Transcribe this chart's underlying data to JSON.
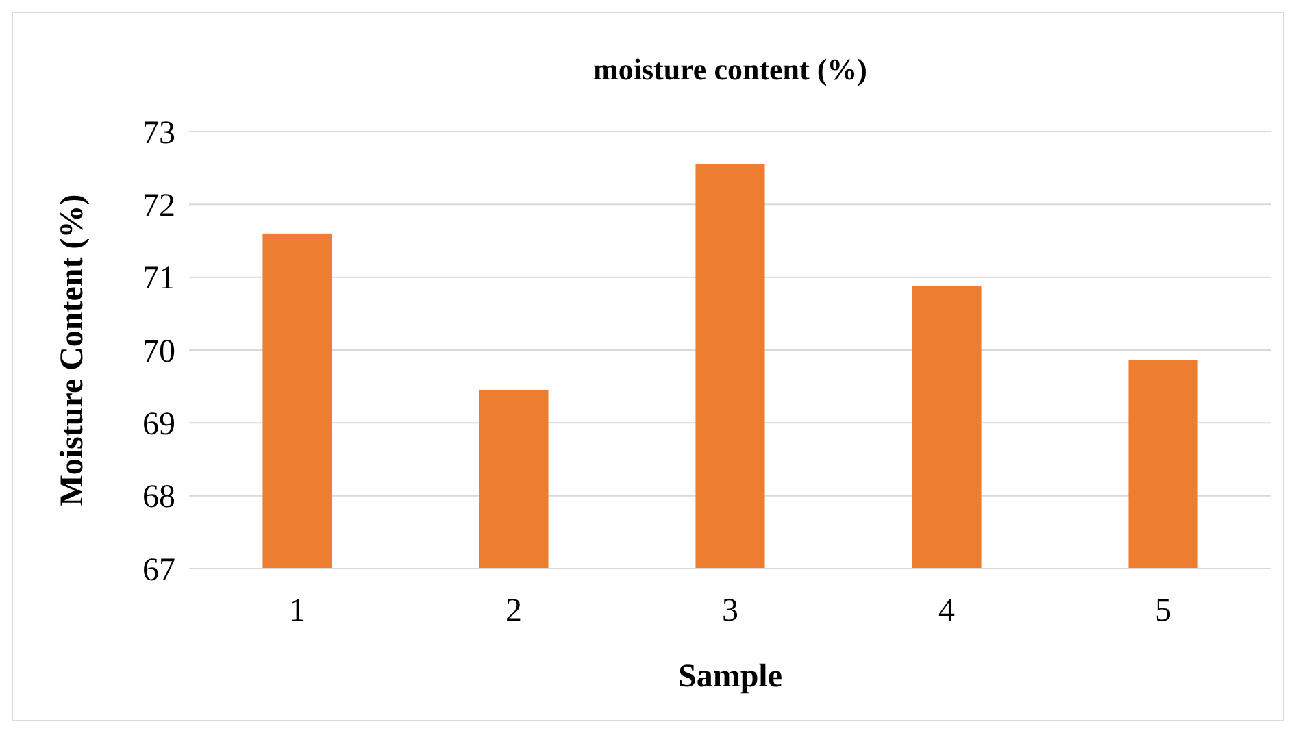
{
  "chart_data": {
    "type": "bar",
    "title": "moisture content (%)",
    "xlabel": "Sample",
    "ylabel": "Moisture Content (%)",
    "categories": [
      "1",
      "2",
      "3",
      "4",
      "5"
    ],
    "values": [
      71.6,
      69.45,
      72.55,
      70.88,
      69.86
    ],
    "color": "#ed7d31",
    "ylim": [
      67,
      73
    ],
    "yticks": [
      67,
      68,
      69,
      70,
      71,
      72,
      73
    ],
    "grid": "y"
  }
}
